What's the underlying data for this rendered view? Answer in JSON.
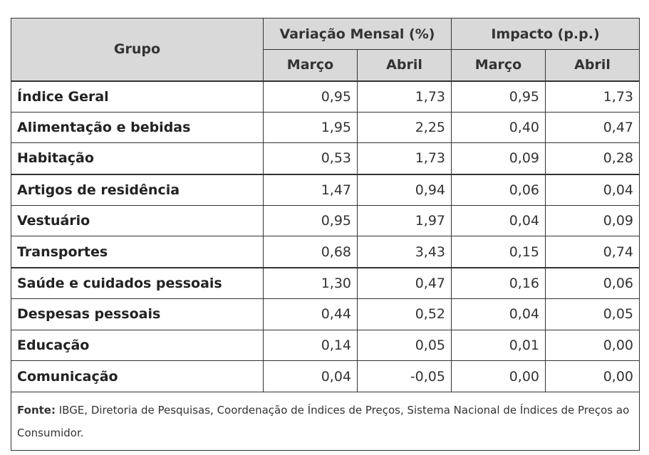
{
  "table": {
    "headers": {
      "group": "Grupo",
      "variation": "Variação Mensal (%)",
      "impact": "Impacto (p.p.)",
      "sub": [
        "Março",
        "Abril",
        "Março",
        "Abril"
      ]
    },
    "rows": [
      {
        "name": "Índice Geral",
        "values": [
          "0,95",
          "1,73",
          "0,95",
          "1,73"
        ]
      },
      {
        "name": "Alimentação e bebidas",
        "values": [
          "1,95",
          "2,25",
          "0,40",
          "0,47"
        ]
      },
      {
        "name": "Habitação",
        "values": [
          "0,53",
          "1,73",
          "0,09",
          "0,28"
        ]
      },
      {
        "name": "Artigos de residência",
        "values": [
          "1,47",
          "0,94",
          "0,06",
          "0,04"
        ]
      },
      {
        "name": "Vestuário",
        "values": [
          "0,95",
          "1,97",
          "0,04",
          "0,09"
        ]
      },
      {
        "name": "Transportes",
        "values": [
          "0,68",
          "3,43",
          "0,15",
          "0,74"
        ]
      },
      {
        "name": "Saúde e cuidados pessoais",
        "values": [
          "1,30",
          "0,47",
          "0,16",
          "0,06"
        ]
      },
      {
        "name": "Despesas pessoais",
        "values": [
          "0,44",
          "0,52",
          "0,04",
          "0,05"
        ]
      },
      {
        "name": "Educação",
        "values": [
          "0,14",
          "0,05",
          "0,01",
          "0,00"
        ]
      },
      {
        "name": "Comunicação",
        "values": [
          "0,04",
          "-0,05",
          "0,00",
          "0,00"
        ]
      }
    ],
    "footer": {
      "label": "Fonte:",
      "text": " IBGE, Diretoria de Pesquisas, Coordenação de Índices de Preços, Sistema Nacional de Índices de Preços ao Consumidor."
    }
  }
}
